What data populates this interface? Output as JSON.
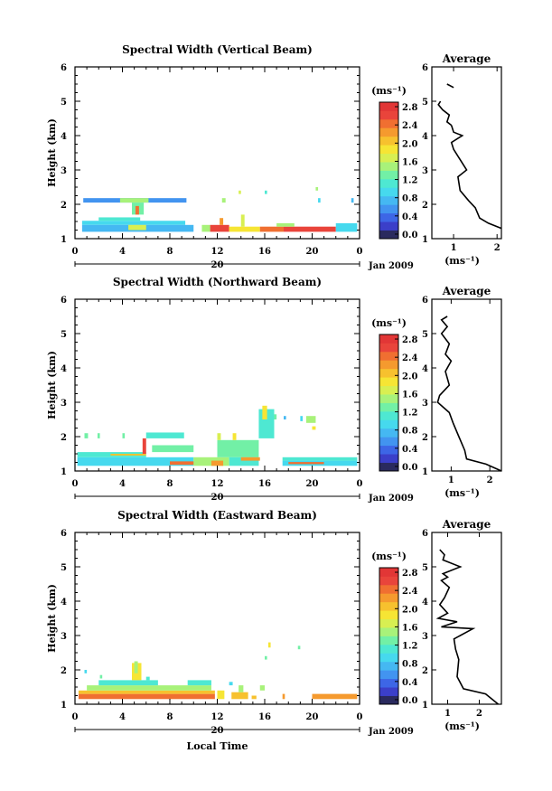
{
  "figure": {
    "date_label": "Jan 2009",
    "x_axis_label": "Local Time",
    "colorbar_unit": "(ms⁻¹)",
    "average_title": "Average",
    "average_unit": "(ms⁻¹)"
  },
  "colors": {
    "scale": [
      "#2a2a5e",
      "#3b3fc9",
      "#3d66e6",
      "#4294f0",
      "#45b8f2",
      "#46d9ee",
      "#4ee8d2",
      "#72f0a6",
      "#a8f27a",
      "#d8ef52",
      "#f6e534",
      "#f7c12e",
      "#f59a2e",
      "#f06f31",
      "#e9443b",
      "#e23636"
    ]
  },
  "chart_data": [
    {
      "type": "heatmap",
      "title": "Spectral Width (Vertical Beam)",
      "xlabel": "",
      "ylabel": "Height (km)",
      "x_ticks": [
        "0",
        "4",
        "8",
        "12",
        "16",
        "20",
        "0"
      ],
      "y_ticks": [
        "1",
        "2",
        "3",
        "4",
        "5",
        "6"
      ],
      "xlim": [
        0,
        24
      ],
      "ylim": [
        1,
        6
      ],
      "day_label": "20",
      "colorbar": {
        "ticks": [
          "2.8",
          "2.4",
          "2.0",
          "1.6",
          "1.2",
          "0.8",
          "0.4",
          "0.0"
        ],
        "range": [
          0,
          3.0
        ]
      },
      "cells": [
        {
          "x0": 0.7,
          "x1": 9.4,
          "y0": 2.05,
          "y1": 2.18,
          "v": 0.65
        },
        {
          "x0": 3.8,
          "x1": 6.2,
          "y0": 2.05,
          "y1": 2.18,
          "v": 1.6
        },
        {
          "x0": 4.8,
          "x1": 5.8,
          "y0": 1.7,
          "y1": 2.05,
          "v": 1.4
        },
        {
          "x0": 5.1,
          "x1": 5.4,
          "y0": 1.7,
          "y1": 1.95,
          "v": 2.5
        },
        {
          "x0": 0.6,
          "x1": 9.3,
          "y0": 1.4,
          "y1": 1.52,
          "v": 1.1
        },
        {
          "x0": 2.0,
          "x1": 5.5,
          "y0": 1.52,
          "y1": 1.62,
          "v": 1.3
        },
        {
          "x0": 0.6,
          "x1": 10.0,
          "y0": 1.2,
          "y1": 1.4,
          "v": 0.8
        },
        {
          "x0": 4.5,
          "x1": 6.0,
          "y0": 1.25,
          "y1": 1.4,
          "v": 1.7
        },
        {
          "x0": 10.7,
          "x1": 11.4,
          "y0": 1.2,
          "y1": 1.4,
          "v": 1.6
        },
        {
          "x0": 11.4,
          "x1": 13.0,
          "y0": 1.2,
          "y1": 1.4,
          "v": 2.8
        },
        {
          "x0": 12.2,
          "x1": 12.5,
          "y0": 1.4,
          "y1": 1.6,
          "v": 2.4
        },
        {
          "x0": 13.0,
          "x1": 15.6,
          "y0": 1.2,
          "y1": 1.35,
          "v": 2.0
        },
        {
          "x0": 14.0,
          "x1": 14.3,
          "y0": 1.35,
          "y1": 1.7,
          "v": 1.8
        },
        {
          "x0": 15.6,
          "x1": 17.6,
          "y0": 1.2,
          "y1": 1.35,
          "v": 2.6
        },
        {
          "x0": 17.6,
          "x1": 22.0,
          "y0": 1.2,
          "y1": 1.35,
          "v": 2.8
        },
        {
          "x0": 17.0,
          "x1": 18.5,
          "y0": 1.35,
          "y1": 1.45,
          "v": 1.6
        },
        {
          "x0": 22.0,
          "x1": 23.8,
          "y0": 1.2,
          "y1": 1.45,
          "v": 1.0
        },
        {
          "x0": 12.4,
          "x1": 12.7,
          "y0": 2.05,
          "y1": 2.18,
          "v": 1.5
        },
        {
          "x0": 13.8,
          "x1": 14.0,
          "y0": 2.3,
          "y1": 2.4,
          "v": 1.7
        },
        {
          "x0": 16.0,
          "x1": 16.2,
          "y0": 2.3,
          "y1": 2.4,
          "v": 1.3
        },
        {
          "x0": 20.3,
          "x1": 20.5,
          "y0": 2.4,
          "y1": 2.5,
          "v": 1.6
        },
        {
          "x0": 20.5,
          "x1": 20.7,
          "y0": 2.05,
          "y1": 2.18,
          "v": 1.0
        },
        {
          "x0": 23.3,
          "x1": 23.5,
          "y0": 2.05,
          "y1": 2.18,
          "v": 0.8
        }
      ],
      "average": {
        "xlim": [
          0.5,
          2.1
        ],
        "x_ticks": [
          "1",
          "2"
        ],
        "x_tick_values": [
          1,
          2
        ],
        "profile": [
          [
            2.1,
            1.3
          ],
          [
            1.8,
            1.45
          ],
          [
            1.6,
            1.6
          ],
          [
            1.5,
            1.9
          ],
          [
            1.35,
            2.1
          ],
          [
            1.15,
            2.4
          ],
          [
            1.1,
            2.8
          ],
          [
            1.3,
            3.0
          ],
          [
            1.15,
            3.3
          ],
          [
            1.0,
            3.6
          ],
          [
            0.95,
            3.8
          ],
          [
            1.2,
            4.0
          ],
          [
            1.0,
            4.1
          ],
          [
            0.95,
            4.3
          ]
        ],
        "profile_upper": [
          [
            0.95,
            4.3
          ],
          [
            0.85,
            4.4
          ],
          [
            0.9,
            4.6
          ],
          [
            0.75,
            4.75
          ],
          [
            0.65,
            4.9
          ],
          [
            0.7,
            5.0
          ]
        ],
        "profile_top": [
          [
            1.0,
            5.4
          ],
          [
            0.85,
            5.5
          ]
        ]
      }
    },
    {
      "type": "heatmap",
      "title": "Spectral Width (Northward Beam)",
      "xlabel": "",
      "ylabel": "Height (km)",
      "x_ticks": [
        "0",
        "4",
        "8",
        "12",
        "16",
        "20",
        "0"
      ],
      "y_ticks": [
        "1",
        "2",
        "3",
        "4",
        "5",
        "6"
      ],
      "xlim": [
        0,
        24
      ],
      "ylim": [
        1,
        6
      ],
      "day_label": "20",
      "colorbar": {
        "ticks": [
          "2.8",
          "2.4",
          "2.0",
          "1.6",
          "1.2",
          "0.8",
          "0.4",
          "0.0"
        ],
        "range": [
          0,
          3.0
        ]
      },
      "cells": [
        {
          "x0": 0.2,
          "x1": 10.0,
          "y0": 1.15,
          "y1": 1.4,
          "v": 1.1
        },
        {
          "x0": 0.2,
          "x1": 6.0,
          "y0": 1.4,
          "y1": 1.55,
          "v": 1.3
        },
        {
          "x0": 3.0,
          "x1": 6.0,
          "y0": 1.45,
          "y1": 1.5,
          "v": 2.1
        },
        {
          "x0": 5.7,
          "x1": 6.0,
          "y0": 1.5,
          "y1": 1.95,
          "v": 2.7
        },
        {
          "x0": 6.0,
          "x1": 9.2,
          "y0": 1.95,
          "y1": 2.12,
          "v": 1.3
        },
        {
          "x0": 0.8,
          "x1": 1.1,
          "y0": 1.95,
          "y1": 2.1,
          "v": 1.4
        },
        {
          "x0": 1.9,
          "x1": 2.1,
          "y0": 1.95,
          "y1": 2.1,
          "v": 1.4
        },
        {
          "x0": 4.0,
          "x1": 4.2,
          "y0": 1.95,
          "y1": 2.1,
          "v": 1.4
        },
        {
          "x0": 6.5,
          "x1": 10.0,
          "y0": 1.55,
          "y1": 1.75,
          "v": 1.4
        },
        {
          "x0": 8.0,
          "x1": 10.3,
          "y0": 1.18,
          "y1": 1.28,
          "v": 2.6
        },
        {
          "x0": 10.0,
          "x1": 13.0,
          "y0": 1.15,
          "y1": 1.4,
          "v": 1.5
        },
        {
          "x0": 11.5,
          "x1": 12.5,
          "y0": 1.15,
          "y1": 1.3,
          "v": 2.3
        },
        {
          "x0": 12.0,
          "x1": 15.5,
          "y0": 1.4,
          "y1": 1.9,
          "v": 1.35
        },
        {
          "x0": 12.0,
          "x1": 12.3,
          "y0": 1.9,
          "y1": 2.1,
          "v": 1.7
        },
        {
          "x0": 13.3,
          "x1": 13.6,
          "y0": 1.9,
          "y1": 2.1,
          "v": 1.9
        },
        {
          "x0": 13.0,
          "x1": 15.5,
          "y0": 1.15,
          "y1": 1.4,
          "v": 1.2
        },
        {
          "x0": 14.0,
          "x1": 15.6,
          "y0": 1.3,
          "y1": 1.4,
          "v": 2.4
        },
        {
          "x0": 15.5,
          "x1": 16.8,
          "y0": 1.95,
          "y1": 2.8,
          "v": 1.3
        },
        {
          "x0": 15.8,
          "x1": 16.2,
          "y0": 2.5,
          "y1": 2.9,
          "v": 1.9
        },
        {
          "x0": 16.8,
          "x1": 17.0,
          "y0": 2.5,
          "y1": 2.65,
          "v": 1.4
        },
        {
          "x0": 17.6,
          "x1": 17.8,
          "y0": 2.5,
          "y1": 2.6,
          "v": 0.8
        },
        {
          "x0": 19.0,
          "x1": 19.2,
          "y0": 2.45,
          "y1": 2.6,
          "v": 1.0
        },
        {
          "x0": 19.5,
          "x1": 20.3,
          "y0": 2.4,
          "y1": 2.6,
          "v": 1.5
        },
        {
          "x0": 20.0,
          "x1": 20.3,
          "y0": 2.2,
          "y1": 2.3,
          "v": 1.9
        },
        {
          "x0": 17.5,
          "x1": 23.8,
          "y0": 1.15,
          "y1": 1.3,
          "v": 1.1
        },
        {
          "x0": 18.0,
          "x1": 21.0,
          "y0": 1.2,
          "y1": 1.26,
          "v": 2.5
        },
        {
          "x0": 17.5,
          "x1": 23.8,
          "y0": 1.3,
          "y1": 1.4,
          "v": 1.25
        }
      ],
      "average": {
        "xlim": [
          0.5,
          2.3
        ],
        "x_ticks": [
          "1",
          "2"
        ],
        "x_tick_values": [
          1,
          2
        ],
        "profile": [
          [
            2.3,
            1.0
          ],
          [
            1.9,
            1.2
          ],
          [
            1.4,
            1.35
          ],
          [
            1.35,
            1.6
          ],
          [
            1.2,
            2.0
          ],
          [
            1.05,
            2.4
          ],
          [
            0.95,
            2.7
          ],
          [
            0.65,
            3.0
          ],
          [
            0.7,
            3.2
          ],
          [
            0.95,
            3.5
          ],
          [
            0.85,
            3.9
          ],
          [
            1.0,
            4.2
          ],
          [
            0.85,
            4.4
          ],
          [
            0.95,
            4.7
          ],
          [
            0.75,
            5.0
          ],
          [
            0.9,
            5.2
          ],
          [
            0.75,
            5.4
          ],
          [
            0.9,
            5.5
          ]
        ]
      }
    },
    {
      "type": "heatmap",
      "title": "Spectral Width (Eastward Beam)",
      "xlabel": "Local Time",
      "ylabel": "Height (km)",
      "x_ticks": [
        "0",
        "4",
        "8",
        "12",
        "16",
        "20",
        "0"
      ],
      "y_ticks": [
        "1",
        "2",
        "3",
        "4",
        "5",
        "6"
      ],
      "xlim": [
        0,
        24
      ],
      "ylim": [
        1,
        6
      ],
      "day_label": "20",
      "colorbar": {
        "ticks": [
          "2.8",
          "2.4",
          "2.0",
          "1.6",
          "1.2",
          "0.8",
          "0.4",
          "0.0"
        ],
        "range": [
          0,
          3.0
        ]
      },
      "cells": [
        {
          "x0": 0.3,
          "x1": 11.8,
          "y0": 1.15,
          "y1": 1.3,
          "v": 2.5
        },
        {
          "x0": 0.3,
          "x1": 11.8,
          "y0": 1.3,
          "y1": 1.4,
          "v": 2.1
        },
        {
          "x0": 1.0,
          "x1": 11.5,
          "y0": 1.4,
          "y1": 1.55,
          "v": 1.6
        },
        {
          "x0": 2.0,
          "x1": 7.0,
          "y0": 1.55,
          "y1": 1.7,
          "v": 1.3
        },
        {
          "x0": 4.8,
          "x1": 5.6,
          "y0": 1.7,
          "y1": 2.2,
          "v": 2.0
        },
        {
          "x0": 5.0,
          "x1": 5.3,
          "y0": 1.9,
          "y1": 2.25,
          "v": 1.6
        },
        {
          "x0": 6.0,
          "x1": 6.3,
          "y0": 1.7,
          "y1": 1.8,
          "v": 1.2
        },
        {
          "x0": 9.5,
          "x1": 11.5,
          "y0": 1.55,
          "y1": 1.7,
          "v": 1.3
        },
        {
          "x0": 0.8,
          "x1": 1.0,
          "y0": 1.9,
          "y1": 2.0,
          "v": 1.0
        },
        {
          "x0": 2.1,
          "x1": 2.3,
          "y0": 1.75,
          "y1": 1.85,
          "v": 1.4
        },
        {
          "x0": 12.0,
          "x1": 12.6,
          "y0": 1.15,
          "y1": 1.4,
          "v": 2.0
        },
        {
          "x0": 13.2,
          "x1": 14.6,
          "y0": 1.15,
          "y1": 1.35,
          "v": 2.2
        },
        {
          "x0": 13.8,
          "x1": 14.2,
          "y0": 1.35,
          "y1": 1.55,
          "v": 1.6
        },
        {
          "x0": 14.9,
          "x1": 15.3,
          "y0": 1.15,
          "y1": 1.25,
          "v": 2.2
        },
        {
          "x0": 15.6,
          "x1": 16.0,
          "y0": 1.4,
          "y1": 1.55,
          "v": 1.5
        },
        {
          "x0": 16.3,
          "x1": 16.5,
          "y0": 2.65,
          "y1": 2.8,
          "v": 1.9
        },
        {
          "x0": 16.0,
          "x1": 16.2,
          "y0": 2.3,
          "y1": 2.4,
          "v": 1.4
        },
        {
          "x0": 17.5,
          "x1": 17.7,
          "y0": 1.15,
          "y1": 1.3,
          "v": 2.3
        },
        {
          "x0": 18.8,
          "x1": 19.0,
          "y0": 2.6,
          "y1": 2.7,
          "v": 1.4
        },
        {
          "x0": 20.0,
          "x1": 23.8,
          "y0": 1.15,
          "y1": 1.3,
          "v": 2.4
        },
        {
          "x0": 13.0,
          "x1": 13.3,
          "y0": 1.55,
          "y1": 1.65,
          "v": 1.0
        }
      ],
      "average": {
        "xlim": [
          0.5,
          2.7
        ],
        "x_ticks": [
          "1",
          "2"
        ],
        "x_tick_values": [
          1,
          2
        ],
        "profile": [
          [
            2.6,
            1.0
          ],
          [
            2.2,
            1.3
          ],
          [
            1.5,
            1.45
          ],
          [
            1.3,
            1.8
          ],
          [
            1.35,
            2.3
          ],
          [
            1.25,
            2.6
          ],
          [
            1.2,
            2.9
          ],
          [
            1.8,
            3.2
          ],
          [
            0.8,
            3.25
          ],
          [
            1.3,
            3.4
          ],
          [
            0.7,
            3.5
          ],
          [
            1.0,
            3.65
          ],
          [
            0.75,
            3.9
          ],
          [
            0.9,
            4.1
          ],
          [
            1.05,
            4.4
          ],
          [
            0.8,
            4.6
          ],
          [
            1.0,
            4.7
          ],
          [
            0.85,
            4.8
          ],
          [
            1.4,
            5.0
          ],
          [
            0.85,
            5.2
          ],
          [
            0.9,
            5.35
          ],
          [
            0.75,
            5.5
          ]
        ]
      }
    }
  ]
}
